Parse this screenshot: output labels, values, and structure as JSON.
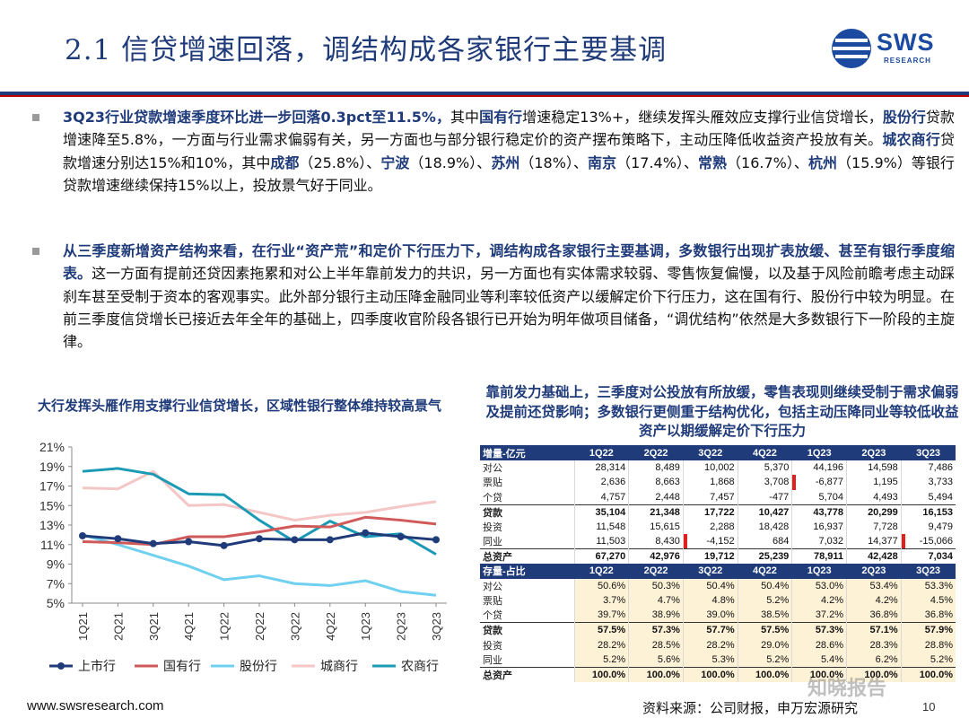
{
  "header": {
    "title": "2.1 信贷增速回落，调结构成各家银行主要基调",
    "logo_text": "SWS",
    "logo_sub": "RESEARCH"
  },
  "bullet1": {
    "s1": "3Q23行业贷款增速季度环比进一步回落0.3pct至11.5%，",
    "s2": "其中",
    "s3": "国有行",
    "s4": "增速稳定13%+，继续发挥头雁效应支撑行业信贷增长，",
    "s5": "股份行",
    "s6": "贷款增速降至5.8%，一方面与行业需求偏弱有关，另一方面也与部分银行稳定价的资产摆布策略下，主动压降低收益资产投放有关。",
    "s7": "城农商行",
    "s8": "贷款增速分别达15%和10%，其中",
    "s9": "成都",
    "s10": "（25.8%）、",
    "s11": "宁波",
    "s12": "（18.9%）、",
    "s13": "苏州",
    "s14": "（18%）、",
    "s15": "南京",
    "s16": "（17.4%）、",
    "s17": "常熟",
    "s18": "（16.7%）、",
    "s19": "杭州",
    "s20": "（15.9%）等银行贷款增速继续保持15%以上，投放景气好于同业。"
  },
  "bullet2": {
    "s1": "从三季度新增资产结构来看，在行业“资产荒”和定价下行压力下，调结构成各家银行主要基调，多数银行出现扩表放缓、甚至有银行季度缩表。",
    "s2": "这一方面有提前还贷因素拖累和对公上半年靠前发力的共识，另一方面也有实体需求较弱、零售恢复偏慢，以及基于风险前瞻考虑主动踩刹车甚至受制于资本的客观事实。此外部分银行主动压降金融同业等利率较低资产以缓解定价下行压力，这在国有行、股份行中较为明显。在前三季度信贷增长已接近去年全年的基础上，四季度收官阶段各银行已开始为明年做项目储备，“调优结构”依然是大多数银行下一阶段的主旋律。"
  },
  "left_chart": {
    "title": "大行发挥头雁作用支撑行业信贷增长，区域性银行整体维持较高景气"
  },
  "chart_data": {
    "type": "line",
    "title": "大行发挥头雁作用支撑行业信贷增长，区域性银行整体维持较高景气",
    "x": [
      "1Q21",
      "2Q21",
      "3Q21",
      "4Q21",
      "1Q22",
      "2Q22",
      "3Q22",
      "4Q22",
      "1Q23",
      "2Q23",
      "3Q23"
    ],
    "y_ticks": [
      "21%",
      "19%",
      "17%",
      "15%",
      "13%",
      "11%",
      "9%",
      "7%",
      "5%"
    ],
    "ylim": [
      5,
      21
    ],
    "series": [
      {
        "name": "上市行",
        "color": "#1f3b7a",
        "values": [
          11.9,
          11.6,
          11.1,
          11.3,
          10.9,
          11.6,
          11.5,
          11.5,
          12.2,
          11.8,
          11.5
        ]
      },
      {
        "name": "国有行",
        "color": "#d05a5a",
        "values": [
          11.3,
          11.2,
          11.0,
          11.8,
          11.8,
          12.3,
          12.9,
          12.8,
          13.8,
          13.5,
          13.1
        ]
      },
      {
        "name": "股份行",
        "color": "#6fd0ef",
        "values": [
          12.0,
          11.0,
          9.9,
          8.8,
          7.4,
          7.8,
          7.0,
          6.8,
          7.3,
          6.2,
          5.8
        ]
      },
      {
        "name": "城商行",
        "color": "#f4c6c6",
        "values": [
          16.8,
          16.7,
          18.5,
          15.0,
          15.1,
          14.3,
          13.5,
          14.0,
          14.3,
          14.9,
          15.4
        ]
      },
      {
        "name": "农商行",
        "color": "#1a9ab5",
        "values": [
          18.5,
          18.8,
          18.2,
          16.2,
          16.1,
          13.5,
          11.3,
          13.4,
          11.8,
          12.1,
          10.0
        ]
      }
    ]
  },
  "right_table": {
    "title": "靠前发力基础上，三季度对公投放有所放缓，零售表现则继续受制于需求偏弱及提前还贷影响；多数银行更侧重于结构优化，包括主动压降同业等较低收益资产以期缓解定价下行压力",
    "header1": [
      "增量-亿元",
      "1Q22",
      "2Q22",
      "3Q22",
      "4Q22",
      "1Q23",
      "2Q23",
      "3Q23"
    ],
    "rows1": [
      [
        "对公",
        "28,314",
        "8,489",
        "10,002",
        "5,370",
        "44,196",
        "14,598",
        "7,486"
      ],
      [
        "票贴",
        "2,636",
        "8,663",
        "1,868",
        "3,708",
        "-6,877",
        "1,195",
        "3,733"
      ],
      [
        "个贷",
        "4,757",
        "2,448",
        "7,457",
        "-477",
        "5,704",
        "4,493",
        "5,494"
      ],
      [
        "贷款",
        "35,104",
        "21,348",
        "17,722",
        "10,427",
        "43,778",
        "20,299",
        "16,153"
      ],
      [
        "投资",
        "11,548",
        "15,615",
        "2,288",
        "18,428",
        "16,937",
        "7,728",
        "9,479"
      ],
      [
        "同业",
        "11,503",
        "8,430",
        "-4,152",
        "684",
        "7,032",
        "14,377",
        "-15,066"
      ],
      [
        "总资产",
        "67,270",
        "42,976",
        "19,712",
        "25,239",
        "78,911",
        "42,428",
        "7,034"
      ]
    ],
    "header2": [
      "存量-占比",
      "1Q22",
      "2Q22",
      "3Q22",
      "4Q22",
      "1Q23",
      "2Q23",
      "3Q23"
    ],
    "rows2": [
      [
        "对公",
        "50.6%",
        "50.3%",
        "50.4%",
        "50.4%",
        "53.0%",
        "53.4%",
        "53.3%"
      ],
      [
        "票贴",
        "3.7%",
        "4.7%",
        "4.8%",
        "5.2%",
        "4.2%",
        "4.2%",
        "4.5%"
      ],
      [
        "个贷",
        "39.7%",
        "38.9%",
        "39.0%",
        "38.5%",
        "37.2%",
        "36.8%",
        "36.8%"
      ],
      [
        "贷款",
        "57.5%",
        "57.3%",
        "57.7%",
        "57.5%",
        "57.3%",
        "57.1%",
        "57.9%"
      ],
      [
        "投资",
        "28.2%",
        "28.5%",
        "28.2%",
        "29.0%",
        "28.6%",
        "28.3%",
        "28.8%"
      ],
      [
        "同业",
        "5.2%",
        "5.6%",
        "5.3%",
        "5.2%",
        "5.4%",
        "6.2%",
        "5.2%"
      ],
      [
        "总资产",
        "100.0%",
        "100.0%",
        "100.0%",
        "100.0%",
        "100.0%",
        "100.0%",
        "100.0%"
      ]
    ]
  },
  "footer": {
    "url": "www.swsresearch.com",
    "source": "资料来源：公司财报，申万宏源研究",
    "page": "10",
    "watermark": "知晓报告"
  }
}
